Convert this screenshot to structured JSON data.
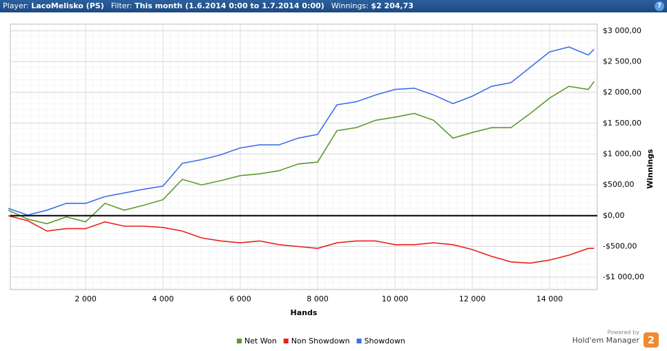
{
  "header": {
    "fields": [
      {
        "label": "Player:",
        "value": "LacoMelisko (PS)"
      },
      {
        "label": "Filter:",
        "value": "This month (1.6.2014 0:00 to 1.7.2014 0:00)"
      },
      {
        "label": "Winnings:",
        "value": "$2 204,73"
      }
    ],
    "help": "?"
  },
  "chart_data": {
    "type": "line",
    "x_label": "Hands",
    "y_label": "Winnings",
    "x": [
      0,
      500,
      1000,
      1500,
      2000,
      2500,
      3000,
      3500,
      4000,
      4500,
      5000,
      5500,
      6000,
      6500,
      7000,
      7500,
      8000,
      8500,
      9000,
      9500,
      10000,
      10500,
      11000,
      11500,
      12000,
      12500,
      13000,
      13500,
      14000,
      14500,
      15000,
      15150
    ],
    "series": [
      {
        "name": "Net Won",
        "color": "#5b9a2e",
        "values": [
          90,
          -55,
          -130,
          -20,
          -100,
          200,
          90,
          170,
          260,
          590,
          500,
          570,
          650,
          680,
          730,
          840,
          870,
          1380,
          1430,
          1550,
          1600,
          1660,
          1550,
          1260,
          1350,
          1430,
          1430,
          1660,
          1910,
          2100,
          2050,
          2180
        ]
      },
      {
        "name": "Non Showdown",
        "color": "#e8201c",
        "values": [
          0,
          -80,
          -250,
          -210,
          -210,
          -100,
          -170,
          -170,
          -190,
          -250,
          -360,
          -410,
          -440,
          -410,
          -470,
          -500,
          -530,
          -440,
          -410,
          -410,
          -470,
          -470,
          -440,
          -470,
          -550,
          -660,
          -750,
          -770,
          -720,
          -640,
          -530,
          -530
        ]
      },
      {
        "name": "Showdown",
        "color": "#3d6ee8",
        "values": [
          120,
          10,
          90,
          200,
          200,
          310,
          370,
          430,
          480,
          850,
          910,
          990,
          1100,
          1150,
          1150,
          1260,
          1320,
          1800,
          1850,
          1960,
          2050,
          2070,
          1960,
          1820,
          1940,
          2100,
          2160,
          2410,
          2660,
          2740,
          2610,
          2700
        ]
      }
    ],
    "xlim": [
      0,
      15200
    ],
    "ylim": [
      -1200,
      3110
    ],
    "xticks": [
      {
        "value": 2000,
        "label": "2 000"
      },
      {
        "value": 4000,
        "label": "4 000"
      },
      {
        "value": 6000,
        "label": "6 000"
      },
      {
        "value": 8000,
        "label": "8 000"
      },
      {
        "value": 10000,
        "label": "10 000"
      },
      {
        "value": 12000,
        "label": "12 000"
      },
      {
        "value": 14000,
        "label": "14 000"
      }
    ],
    "yticks": [
      {
        "value": -1000,
        "label": "-$1 000,00"
      },
      {
        "value": -500,
        "label": "-$500,00"
      },
      {
        "value": 0,
        "label": "$0,00"
      },
      {
        "value": 500,
        "label": "$500,00"
      },
      {
        "value": 1000,
        "label": "$1 000,00"
      },
      {
        "value": 1500,
        "label": "$1 500,00"
      },
      {
        "value": 2000,
        "label": "$2 000,00"
      },
      {
        "value": 2500,
        "label": "$2 500,00"
      },
      {
        "value": 3000,
        "label": "$3 000,00"
      }
    ],
    "grid": true,
    "zero_line": true,
    "legend": "bottom"
  },
  "branding": {
    "powered": "Powered by",
    "product": "Hold'em Manager",
    "badge": "2"
  }
}
